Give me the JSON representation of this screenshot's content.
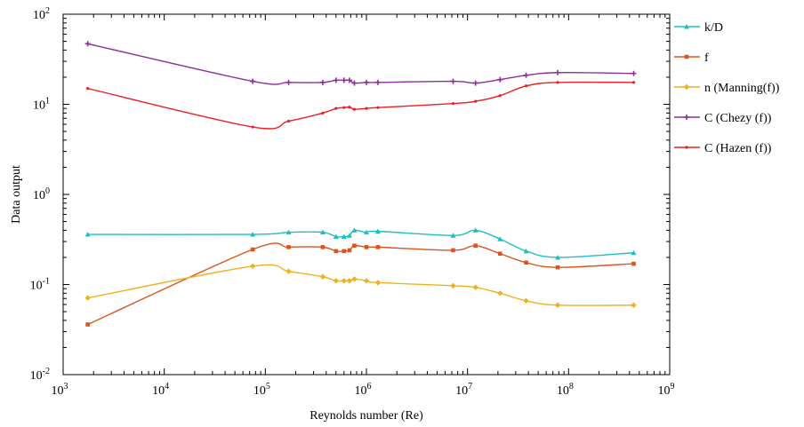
{
  "chart_data": {
    "type": "line",
    "xlabel": "Reynolds number (Re)",
    "ylabel": "Data output",
    "x_scale": "log",
    "y_scale": "log",
    "xlim": [
      1000,
      1000000000
    ],
    "ylim": [
      0.01,
      100
    ],
    "grid": false,
    "legend_position": "right",
    "x_ticks": [
      {
        "base": "10",
        "exp": "3",
        "value": 1000
      },
      {
        "base": "10",
        "exp": "4",
        "value": 10000
      },
      {
        "base": "10",
        "exp": "5",
        "value": 100000
      },
      {
        "base": "10",
        "exp": "6",
        "value": 1000000
      },
      {
        "base": "10",
        "exp": "7",
        "value": 10000000
      },
      {
        "base": "10",
        "exp": "8",
        "value": 100000000
      },
      {
        "base": "10",
        "exp": "9",
        "value": 1000000000
      }
    ],
    "y_ticks": [
      {
        "base": "10",
        "exp": "2",
        "value": 100
      },
      {
        "base": "10",
        "exp": "1",
        "value": 10
      },
      {
        "base": "10",
        "exp": "0",
        "value": 1
      },
      {
        "base": "10",
        "exp": "-1",
        "value": 0.1
      },
      {
        "base": "10",
        "exp": "-2",
        "value": 0.01
      }
    ],
    "x": [
      1750,
      75000,
      170000,
      370000,
      500000,
      600000,
      680000,
      760000,
      1000000,
      1300000,
      7200000,
      12000000,
      21000000,
      38000000,
      78000000,
      440000000
    ],
    "series": [
      {
        "name": "k/D",
        "color": "#1ebfbf",
        "marker": "triangle",
        "values": [
          0.36,
          0.36,
          0.38,
          0.38,
          0.34,
          0.34,
          0.35,
          0.4,
          0.38,
          0.39,
          0.35,
          0.4,
          0.32,
          0.235,
          0.2,
          0.225
        ]
      },
      {
        "name": "f",
        "color": "#d9541e",
        "marker": "square",
        "values": [
          0.036,
          0.245,
          0.26,
          0.26,
          0.235,
          0.235,
          0.24,
          0.27,
          0.26,
          0.26,
          0.24,
          0.27,
          0.22,
          0.175,
          0.155,
          0.17
        ]
      },
      {
        "name": "n (Manning(f))",
        "color": "#f0b020",
        "marker": "diamond",
        "values": [
          0.071,
          0.16,
          0.14,
          0.122,
          0.11,
          0.11,
          0.11,
          0.115,
          0.11,
          0.105,
          0.097,
          0.093,
          0.08,
          0.066,
          0.059,
          0.059
        ]
      },
      {
        "name": "C (Chezy (f))",
        "color": "#8a2f9a",
        "marker": "plus",
        "values": [
          47,
          18,
          17.5,
          17.5,
          18.5,
          18.5,
          18.5,
          17.2,
          17.5,
          17.5,
          18.0,
          17.2,
          18.8,
          21.0,
          22.5,
          22.0
        ]
      },
      {
        "name": "C (Hazen (f))",
        "color": "#ee1c24",
        "marker": "point",
        "values": [
          15,
          5.6,
          6.5,
          8.0,
          9.0,
          9.2,
          9.3,
          8.8,
          9.0,
          9.2,
          10.2,
          10.8,
          12.5,
          16.0,
          17.5,
          17.5
        ]
      }
    ]
  }
}
